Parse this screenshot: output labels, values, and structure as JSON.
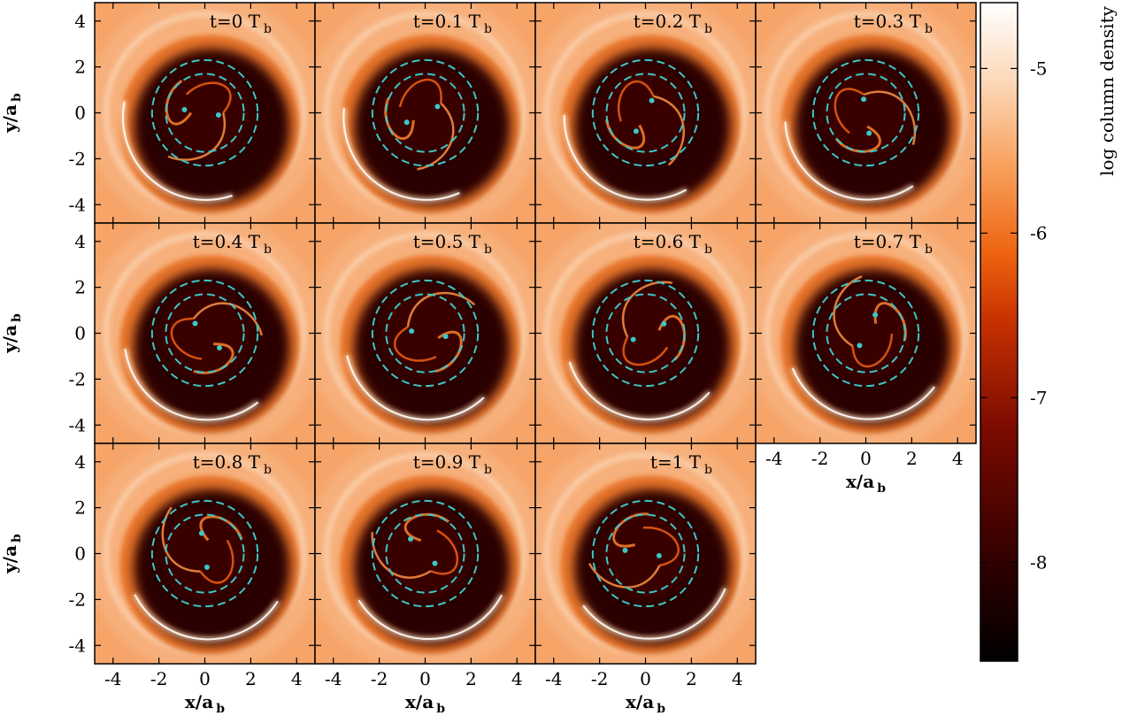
{
  "figure": {
    "panels": [
      {
        "time": "t=0 T",
        "sub": "b"
      },
      {
        "time": "t=0.1 T",
        "sub": "b"
      },
      {
        "time": "t=0.2 T",
        "sub": "b"
      },
      {
        "time": "t=0.3 T",
        "sub": "b"
      },
      {
        "time": "t=0.4 T",
        "sub": "b"
      },
      {
        "time": "t=0.5 T",
        "sub": "b"
      },
      {
        "time": "t=0.6 T",
        "sub": "b"
      },
      {
        "time": "t=0.7 T",
        "sub": "b"
      },
      {
        "time": "t=0.8 T",
        "sub": "b"
      },
      {
        "time": "t=0.9 T",
        "sub": "b"
      },
      {
        "time": "t=1 T",
        "sub": "b"
      }
    ],
    "axis": {
      "xlabel": "x/a",
      "ylabel": "y/a",
      "sub": "b",
      "ticks": [
        -4,
        -2,
        0,
        2,
        4
      ],
      "range": [
        -4.8,
        4.8
      ]
    },
    "colorbar": {
      "label": "log column density",
      "ticks": [
        -5,
        -6,
        -7,
        -8
      ],
      "range": [
        -8.6,
        -4.6
      ]
    },
    "overlay_color": "#3ec6c6",
    "colormap": [
      "#000000",
      "#3a0000",
      "#8a0f00",
      "#d03a00",
      "#f26b10",
      "#f8a060",
      "#fbd6b5",
      "#ffffff"
    ]
  }
}
